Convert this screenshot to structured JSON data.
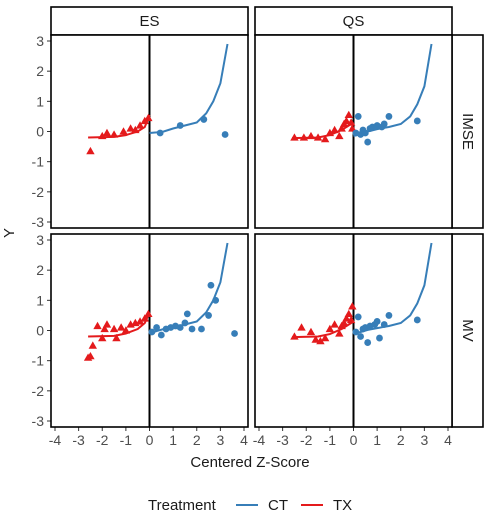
{
  "chart_data": {
    "type": "scatter",
    "xlabel": "Centered Z-Score",
    "ylabel": "Y",
    "xlim": [
      -4,
      4
    ],
    "ylim": [
      -3,
      3
    ],
    "x_ticks": [
      -4,
      -3,
      -2,
      -1,
      0,
      1,
      2,
      3,
      4
    ],
    "y_ticks": [
      -3,
      -2,
      -1,
      0,
      1,
      2,
      3
    ],
    "column_facets": [
      "ES",
      "QS"
    ],
    "row_facets": [
      "IMSE",
      "MV"
    ],
    "cutoff_x": 0,
    "grid": false,
    "legend": {
      "title": "Treatment",
      "position": "bottom",
      "entries": [
        {
          "label": "CT",
          "color": "#377eb8",
          "shape": "circle"
        },
        {
          "label": "TX",
          "color": "#e41a1c",
          "shape": "triangle"
        }
      ]
    },
    "panels": [
      {
        "column": "ES",
        "row": "IMSE",
        "TX_points": [
          [
            -2.5,
            -0.65
          ],
          [
            -2.0,
            -0.15
          ],
          [
            -1.8,
            -0.05
          ],
          [
            -1.5,
            -0.1
          ],
          [
            -1.1,
            0.0
          ],
          [
            -0.8,
            0.1
          ],
          [
            -0.6,
            0.05
          ],
          [
            -0.4,
            0.2
          ],
          [
            -0.2,
            0.35
          ],
          [
            -0.05,
            0.45
          ]
        ],
        "CT_points": [
          [
            0.45,
            -0.05
          ],
          [
            1.3,
            0.2
          ],
          [
            2.3,
            0.4
          ],
          [
            3.2,
            -0.1
          ]
        ],
        "TX_fit": [
          [
            -2.6,
            -0.2
          ],
          [
            -1.5,
            -0.18
          ],
          [
            -1.0,
            -0.12
          ],
          [
            -0.5,
            0.0
          ],
          [
            -0.2,
            0.15
          ],
          [
            0.0,
            0.55
          ]
        ],
        "CT_fit": [
          [
            0.0,
            -0.05
          ],
          [
            0.3,
            -0.03
          ],
          [
            0.6,
            0.0
          ],
          [
            1.0,
            0.1
          ],
          [
            1.5,
            0.2
          ],
          [
            2.0,
            0.3
          ],
          [
            2.4,
            0.6
          ],
          [
            2.7,
            1.0
          ],
          [
            3.0,
            1.6
          ],
          [
            3.3,
            2.9
          ]
        ]
      },
      {
        "column": "QS",
        "row": "IMSE",
        "TX_points": [
          [
            -2.5,
            -0.2
          ],
          [
            -2.1,
            -0.2
          ],
          [
            -1.8,
            -0.15
          ],
          [
            -1.5,
            -0.2
          ],
          [
            -1.2,
            -0.25
          ],
          [
            -1.0,
            -0.05
          ],
          [
            -0.8,
            0.05
          ],
          [
            -0.6,
            -0.15
          ],
          [
            -0.5,
            0.1
          ],
          [
            -0.4,
            0.25
          ],
          [
            -0.3,
            0.35
          ],
          [
            -0.2,
            0.55
          ],
          [
            -0.1,
            0.3
          ],
          [
            -0.05,
            0.1
          ]
        ],
        "CT_points": [
          [
            0.1,
            -0.05
          ],
          [
            0.2,
            0.5
          ],
          [
            0.3,
            -0.1
          ],
          [
            0.4,
            0.05
          ],
          [
            0.5,
            -0.05
          ],
          [
            0.6,
            -0.35
          ],
          [
            0.7,
            0.1
          ],
          [
            0.8,
            0.15
          ],
          [
            1.0,
            0.2
          ],
          [
            1.2,
            0.15
          ],
          [
            1.5,
            0.5
          ],
          [
            1.3,
            0.25
          ],
          [
            2.7,
            0.35
          ]
        ],
        "TX_fit": [
          [
            -2.6,
            -0.22
          ],
          [
            -1.5,
            -0.2
          ],
          [
            -1.0,
            -0.12
          ],
          [
            -0.5,
            0.05
          ],
          [
            -0.2,
            0.2
          ],
          [
            0.0,
            0.3
          ]
        ],
        "CT_fit": [
          [
            0.0,
            -0.15
          ],
          [
            0.3,
            -0.08
          ],
          [
            0.6,
            0.0
          ],
          [
            1.0,
            0.08
          ],
          [
            1.5,
            0.15
          ],
          [
            2.0,
            0.25
          ],
          [
            2.4,
            0.5
          ],
          [
            2.7,
            0.9
          ],
          [
            3.0,
            1.5
          ],
          [
            3.3,
            2.9
          ]
        ]
      },
      {
        "column": "ES",
        "row": "MV",
        "TX_points": [
          [
            -2.6,
            -0.9
          ],
          [
            -2.5,
            -0.85
          ],
          [
            -2.4,
            -0.5
          ],
          [
            -2.2,
            0.15
          ],
          [
            -2.0,
            -0.25
          ],
          [
            -1.9,
            0.05
          ],
          [
            -1.8,
            0.2
          ],
          [
            -1.5,
            0.05
          ],
          [
            -1.4,
            -0.25
          ],
          [
            -1.2,
            0.1
          ],
          [
            -1.0,
            0.0
          ],
          [
            -0.8,
            0.2
          ],
          [
            -0.6,
            0.25
          ],
          [
            -0.4,
            0.3
          ],
          [
            -0.2,
            0.4
          ],
          [
            -0.05,
            0.55
          ]
        ],
        "CT_points": [
          [
            0.1,
            -0.05
          ],
          [
            0.3,
            0.1
          ],
          [
            0.5,
            -0.15
          ],
          [
            0.7,
            0.05
          ],
          [
            0.9,
            0.1
          ],
          [
            1.1,
            0.15
          ],
          [
            1.3,
            0.1
          ],
          [
            1.5,
            0.25
          ],
          [
            1.6,
            0.55
          ],
          [
            1.8,
            0.05
          ],
          [
            2.2,
            0.05
          ],
          [
            2.5,
            0.5
          ],
          [
            2.6,
            1.5
          ],
          [
            2.8,
            1.0
          ],
          [
            3.6,
            -0.1
          ]
        ],
        "TX_fit": [
          [
            -2.6,
            -0.2
          ],
          [
            -1.5,
            -0.18
          ],
          [
            -1.0,
            -0.1
          ],
          [
            -0.5,
            0.05
          ],
          [
            -0.2,
            0.25
          ],
          [
            0.0,
            0.6
          ]
        ],
        "CT_fit": [
          [
            0.0,
            -0.1
          ],
          [
            0.3,
            -0.02
          ],
          [
            0.6,
            0.05
          ],
          [
            1.0,
            0.1
          ],
          [
            1.5,
            0.2
          ],
          [
            2.0,
            0.3
          ],
          [
            2.4,
            0.6
          ],
          [
            2.7,
            1.0
          ],
          [
            3.0,
            1.6
          ],
          [
            3.3,
            2.9
          ]
        ]
      },
      {
        "column": "QS",
        "row": "MV",
        "TX_points": [
          [
            -2.5,
            -0.2
          ],
          [
            -2.2,
            0.1
          ],
          [
            -1.8,
            -0.05
          ],
          [
            -1.6,
            -0.3
          ],
          [
            -1.4,
            -0.35
          ],
          [
            -1.2,
            -0.25
          ],
          [
            -1.0,
            0.05
          ],
          [
            -0.8,
            0.2
          ],
          [
            -0.6,
            -0.1
          ],
          [
            -0.5,
            0.15
          ],
          [
            -0.4,
            0.25
          ],
          [
            -0.3,
            0.4
          ],
          [
            -0.2,
            0.55
          ],
          [
            -0.1,
            0.35
          ],
          [
            -0.05,
            0.8
          ]
        ],
        "CT_points": [
          [
            0.1,
            -0.05
          ],
          [
            0.2,
            0.45
          ],
          [
            0.3,
            -0.2
          ],
          [
            0.4,
            0.05
          ],
          [
            0.5,
            0.1
          ],
          [
            0.6,
            -0.4
          ],
          [
            0.7,
            0.15
          ],
          [
            0.9,
            0.2
          ],
          [
            1.0,
            0.3
          ],
          [
            1.1,
            -0.25
          ],
          [
            1.3,
            0.2
          ],
          [
            1.5,
            0.5
          ],
          [
            2.7,
            0.35
          ]
        ],
        "TX_fit": [
          [
            -2.6,
            -0.22
          ],
          [
            -1.5,
            -0.2
          ],
          [
            -1.0,
            -0.12
          ],
          [
            -0.5,
            0.05
          ],
          [
            -0.2,
            0.2
          ],
          [
            0.0,
            0.3
          ]
        ],
        "CT_fit": [
          [
            0.0,
            -0.1
          ],
          [
            0.3,
            -0.05
          ],
          [
            0.6,
            0.02
          ],
          [
            1.0,
            0.08
          ],
          [
            1.5,
            0.15
          ],
          [
            2.0,
            0.25
          ],
          [
            2.4,
            0.5
          ],
          [
            2.7,
            0.9
          ],
          [
            3.0,
            1.5
          ],
          [
            3.3,
            2.9
          ]
        ]
      }
    ]
  }
}
